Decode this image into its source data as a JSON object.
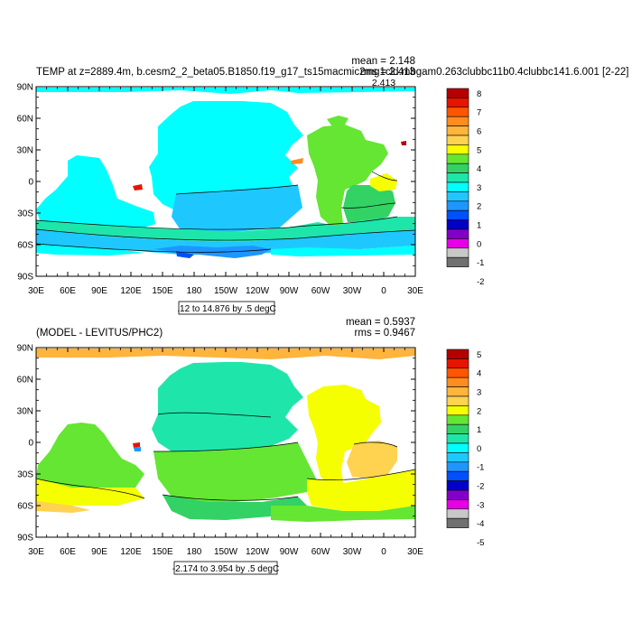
{
  "chart_data": [
    {
      "type": "heatmap",
      "title": "TEMP at z=2889.4m, b.cesm2_2_beta05.B1850.f19_g17_ts15macmic2mg1cld.mbgam0.263clubbc11b0.4clubbc141.6.001 [2-22]",
      "stats": {
        "mean": "mean = 2.148",
        "rms": "rms = 2.413"
      },
      "range_label": ".12 to 14.876 by .5 degC",
      "x_ticks": [
        "30E",
        "60E",
        "90E",
        "120E",
        "150E",
        "180",
        "150W",
        "120W",
        "90W",
        "60W",
        "30W",
        "0",
        "30E"
      ],
      "y_ticks": [
        "90N",
        "60N",
        "30N",
        "0",
        "30S",
        "60S",
        "90S"
      ],
      "xlim": [
        30,
        390
      ],
      "ylim": [
        -90,
        90
      ],
      "colorbar": {
        "labels": [
          "8",
          "7",
          "6",
          "5",
          "4",
          "3",
          "2",
          "1",
          "0",
          "-1",
          "-2"
        ],
        "colors": [
          "#b40000",
          "#e61400",
          "#ff5500",
          "#ff8c1e",
          "#ffb43c",
          "#ffd250",
          "#f5ff00",
          "#64e632",
          "#32d264",
          "#1ee6aa",
          "#00ffff",
          "#1ec8ff",
          "#1e96ff",
          "#0050ff",
          "#0000c8",
          "#8200c8",
          "#e600e6",
          "#c8c8c8",
          "#707070"
        ]
      },
      "annotations": [
        "2.413"
      ]
    },
    {
      "type": "heatmap",
      "title": "(MODEL - LEVITUS/PHC2)",
      "stats": {
        "mean": "mean = 0.5937",
        "rms": "rms = 0.9467"
      },
      "range_label": "-2.174 to 3.954 by .5 degC",
      "x_ticks": [
        "30E",
        "60E",
        "90E",
        "120E",
        "150E",
        "180",
        "150W",
        "120W",
        "90W",
        "60W",
        "30W",
        "0",
        "30E"
      ],
      "y_ticks": [
        "90N",
        "60N",
        "30N",
        "0",
        "30S",
        "60S",
        "90S"
      ],
      "xlim": [
        30,
        390
      ],
      "ylim": [
        -90,
        90
      ],
      "colorbar": {
        "labels": [
          "5",
          "4",
          "3",
          "2",
          "1",
          "0",
          "-1",
          "-2",
          "-3",
          "-4",
          "-5"
        ],
        "colors": [
          "#b40000",
          "#e61400",
          "#ff5500",
          "#ff8c1e",
          "#ffb43c",
          "#ffd250",
          "#f5ff00",
          "#64e632",
          "#32d264",
          "#1ee6aa",
          "#00ffff",
          "#1ec8ff",
          "#1e96ff",
          "#0050ff",
          "#0000c8",
          "#8200c8",
          "#e600e6",
          "#c8c8c8",
          "#707070"
        ]
      }
    }
  ]
}
